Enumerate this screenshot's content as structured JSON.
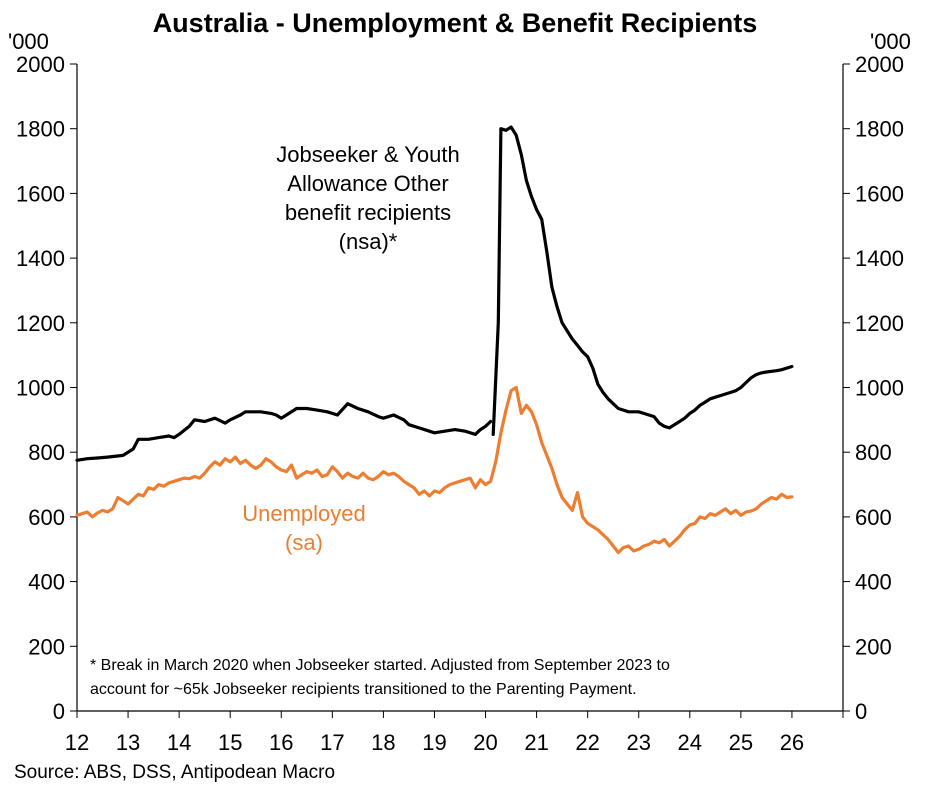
{
  "chart_data": {
    "type": "line",
    "title": "Australia - Unemployment & Benefit Recipients",
    "units_left": "'000",
    "units_right": "'000",
    "ylim": [
      0,
      2000
    ],
    "yticks": [
      0,
      200,
      400,
      600,
      800,
      1000,
      1200,
      1400,
      1600,
      1800,
      2000
    ],
    "xlim": [
      2012,
      2027
    ],
    "xticks": [
      "12",
      "13",
      "14",
      "15",
      "16",
      "17",
      "18",
      "19",
      "20",
      "21",
      "22",
      "23",
      "24",
      "25",
      "26"
    ],
    "series": [
      {
        "name": "Jobseeker & Youth Allowance Other benefit recipients (nsa)*",
        "label_lines": [
          "Jobseeker & Youth",
          "Allowance Other",
          "benefit recipients",
          "(nsa)*"
        ],
        "color": "#000000",
        "segments": [
          [
            [
              2012.0,
              775
            ],
            [
              2012.2,
              780
            ],
            [
              2012.4,
              782
            ],
            [
              2012.6,
              785
            ],
            [
              2012.9,
              790
            ],
            [
              2013.1,
              810
            ],
            [
              2013.2,
              840
            ],
            [
              2013.4,
              840
            ],
            [
              2013.6,
              845
            ],
            [
              2013.8,
              850
            ],
            [
              2013.9,
              845
            ],
            [
              2014.0,
              855
            ],
            [
              2014.2,
              880
            ],
            [
              2014.3,
              900
            ],
            [
              2014.5,
              895
            ],
            [
              2014.7,
              905
            ],
            [
              2014.9,
              890
            ],
            [
              2015.0,
              900
            ],
            [
              2015.2,
              915
            ],
            [
              2015.3,
              925
            ],
            [
              2015.6,
              925
            ],
            [
              2015.8,
              920
            ],
            [
              2015.9,
              915
            ],
            [
              2016.0,
              905
            ],
            [
              2016.1,
              915
            ],
            [
              2016.3,
              935
            ],
            [
              2016.5,
              935
            ],
            [
              2016.7,
              930
            ],
            [
              2016.9,
              925
            ],
            [
              2017.0,
              920
            ],
            [
              2017.1,
              915
            ],
            [
              2017.3,
              950
            ],
            [
              2017.5,
              935
            ],
            [
              2017.7,
              925
            ],
            [
              2017.9,
              910
            ],
            [
              2018.0,
              905
            ],
            [
              2018.2,
              915
            ],
            [
              2018.4,
              900
            ],
            [
              2018.5,
              885
            ],
            [
              2018.7,
              875
            ],
            [
              2018.9,
              865
            ],
            [
              2019.0,
              860
            ],
            [
              2019.2,
              865
            ],
            [
              2019.4,
              870
            ],
            [
              2019.6,
              865
            ],
            [
              2019.8,
              855
            ],
            [
              2019.9,
              870
            ],
            [
              2020.0,
              880
            ],
            [
              2020.1,
              895
            ]
          ],
          [
            [
              2020.15,
              855
            ],
            [
              2020.25,
              1200
            ],
            [
              2020.3,
              1800
            ],
            [
              2020.4,
              1795
            ],
            [
              2020.5,
              1805
            ],
            [
              2020.6,
              1780
            ],
            [
              2020.7,
              1720
            ],
            [
              2020.8,
              1640
            ],
            [
              2020.9,
              1590
            ],
            [
              2021.0,
              1550
            ],
            [
              2021.1,
              1520
            ],
            [
              2021.2,
              1420
            ],
            [
              2021.3,
              1310
            ],
            [
              2021.4,
              1250
            ],
            [
              2021.5,
              1200
            ],
            [
              2021.6,
              1175
            ],
            [
              2021.7,
              1150
            ],
            [
              2021.8,
              1130
            ],
            [
              2021.9,
              1110
            ],
            [
              2022.0,
              1095
            ],
            [
              2022.1,
              1060
            ],
            [
              2022.2,
              1010
            ],
            [
              2022.3,
              985
            ],
            [
              2022.4,
              965
            ],
            [
              2022.5,
              950
            ],
            [
              2022.6,
              935
            ],
            [
              2022.7,
              930
            ],
            [
              2022.8,
              925
            ],
            [
              2022.9,
              925
            ],
            [
              2023.0,
              925
            ],
            [
              2023.1,
              920
            ],
            [
              2023.2,
              915
            ],
            [
              2023.3,
              910
            ],
            [
              2023.4,
              890
            ],
            [
              2023.5,
              880
            ],
            [
              2023.6,
              875
            ],
            [
              2023.7,
              885
            ],
            [
              2023.8,
              895
            ],
            [
              2023.9,
              905
            ],
            [
              2024.0,
              920
            ],
            [
              2024.1,
              930
            ],
            [
              2024.2,
              945
            ],
            [
              2024.3,
              955
            ],
            [
              2024.4,
              965
            ],
            [
              2024.5,
              970
            ],
            [
              2024.6,
              975
            ],
            [
              2024.7,
              980
            ],
            [
              2024.8,
              985
            ],
            [
              2024.9,
              990
            ],
            [
              2025.0,
              1000
            ],
            [
              2025.1,
              1015
            ],
            [
              2025.2,
              1030
            ],
            [
              2025.3,
              1040
            ],
            [
              2025.4,
              1045
            ],
            [
              2025.5,
              1048
            ],
            [
              2025.6,
              1050
            ],
            [
              2025.7,
              1052
            ],
            [
              2025.8,
              1055
            ],
            [
              2025.9,
              1060
            ],
            [
              2026.0,
              1065
            ]
          ]
        ]
      },
      {
        "name": "Unemployed (sa)",
        "label_lines": [
          "Unemployed",
          "(sa)"
        ],
        "color": "#ED7D31",
        "segments": [
          [
            [
              2012.0,
              605
            ],
            [
              2012.1,
              610
            ],
            [
              2012.2,
              615
            ],
            [
              2012.3,
              600
            ],
            [
              2012.4,
              612
            ],
            [
              2012.5,
              620
            ],
            [
              2012.6,
              615
            ],
            [
              2012.7,
              625
            ],
            [
              2012.8,
              660
            ],
            [
              2012.9,
              650
            ],
            [
              2013.0,
              640
            ],
            [
              2013.1,
              655
            ],
            [
              2013.2,
              670
            ],
            [
              2013.3,
              665
            ],
            [
              2013.4,
              690
            ],
            [
              2013.5,
              685
            ],
            [
              2013.6,
              700
            ],
            [
              2013.7,
              695
            ],
            [
              2013.8,
              705
            ],
            [
              2013.9,
              710
            ],
            [
              2014.0,
              715
            ],
            [
              2014.1,
              720
            ],
            [
              2014.2,
              718
            ],
            [
              2014.3,
              725
            ],
            [
              2014.4,
              720
            ],
            [
              2014.5,
              735
            ],
            [
              2014.6,
              755
            ],
            [
              2014.7,
              770
            ],
            [
              2014.8,
              760
            ],
            [
              2014.9,
              780
            ],
            [
              2015.0,
              770
            ],
            [
              2015.1,
              785
            ],
            [
              2015.2,
              765
            ],
            [
              2015.3,
              775
            ],
            [
              2015.4,
              760
            ],
            [
              2015.5,
              750
            ],
            [
              2015.6,
              760
            ],
            [
              2015.7,
              780
            ],
            [
              2015.8,
              770
            ],
            [
              2015.9,
              755
            ],
            [
              2016.0,
              745
            ],
            [
              2016.1,
              740
            ],
            [
              2016.2,
              760
            ],
            [
              2016.3,
              720
            ],
            [
              2016.4,
              730
            ],
            [
              2016.5,
              740
            ],
            [
              2016.6,
              735
            ],
            [
              2016.7,
              745
            ],
            [
              2016.8,
              725
            ],
            [
              2016.9,
              730
            ],
            [
              2017.0,
              755
            ],
            [
              2017.1,
              740
            ],
            [
              2017.2,
              720
            ],
            [
              2017.3,
              735
            ],
            [
              2017.4,
              725
            ],
            [
              2017.5,
              720
            ],
            [
              2017.6,
              735
            ],
            [
              2017.7,
              720
            ],
            [
              2017.8,
              715
            ],
            [
              2017.9,
              725
            ],
            [
              2018.0,
              740
            ],
            [
              2018.1,
              730
            ],
            [
              2018.2,
              735
            ],
            [
              2018.3,
              725
            ],
            [
              2018.4,
              710
            ],
            [
              2018.5,
              700
            ],
            [
              2018.6,
              690
            ],
            [
              2018.7,
              670
            ],
            [
              2018.8,
              680
            ],
            [
              2018.9,
              665
            ],
            [
              2019.0,
              680
            ],
            [
              2019.1,
              675
            ],
            [
              2019.2,
              690
            ],
            [
              2019.3,
              700
            ],
            [
              2019.4,
              705
            ],
            [
              2019.5,
              710
            ],
            [
              2019.6,
              715
            ],
            [
              2019.7,
              720
            ],
            [
              2019.8,
              690
            ],
            [
              2019.9,
              715
            ],
            [
              2020.0,
              700
            ],
            [
              2020.1,
              710
            ],
            [
              2020.2,
              770
            ],
            [
              2020.3,
              860
            ],
            [
              2020.4,
              930
            ],
            [
              2020.5,
              990
            ],
            [
              2020.6,
              1000
            ],
            [
              2020.7,
              920
            ],
            [
              2020.8,
              945
            ],
            [
              2020.9,
              925
            ],
            [
              2021.0,
              885
            ],
            [
              2021.1,
              830
            ],
            [
              2021.2,
              790
            ],
            [
              2021.3,
              750
            ],
            [
              2021.4,
              700
            ],
            [
              2021.5,
              660
            ],
            [
              2021.6,
              640
            ],
            [
              2021.7,
              620
            ],
            [
              2021.8,
              675
            ],
            [
              2021.9,
              600
            ],
            [
              2022.0,
              580
            ],
            [
              2022.1,
              570
            ],
            [
              2022.2,
              560
            ],
            [
              2022.3,
              545
            ],
            [
              2022.4,
              530
            ],
            [
              2022.5,
              510
            ],
            [
              2022.6,
              490
            ],
            [
              2022.7,
              505
            ],
            [
              2022.8,
              510
            ],
            [
              2022.9,
              495
            ],
            [
              2023.0,
              500
            ],
            [
              2023.1,
              510
            ],
            [
              2023.2,
              515
            ],
            [
              2023.3,
              525
            ],
            [
              2023.4,
              520
            ],
            [
              2023.5,
              530
            ],
            [
              2023.6,
              510
            ],
            [
              2023.7,
              525
            ],
            [
              2023.8,
              540
            ],
            [
              2023.9,
              560
            ],
            [
              2024.0,
              575
            ],
            [
              2024.1,
              580
            ],
            [
              2024.2,
              600
            ],
            [
              2024.3,
              595
            ],
            [
              2024.4,
              610
            ],
            [
              2024.5,
              605
            ],
            [
              2024.6,
              615
            ],
            [
              2024.7,
              625
            ],
            [
              2024.8,
              610
            ],
            [
              2024.9,
              620
            ],
            [
              2025.0,
              605
            ],
            [
              2025.1,
              615
            ],
            [
              2025.2,
              618
            ],
            [
              2025.3,
              625
            ],
            [
              2025.4,
              640
            ],
            [
              2025.5,
              650
            ],
            [
              2025.6,
              660
            ],
            [
              2025.7,
              655
            ],
            [
              2025.8,
              670
            ],
            [
              2025.9,
              660
            ],
            [
              2026.0,
              662
            ]
          ]
        ]
      }
    ],
    "footnote_lines": [
      "* Break in March 2020 when Jobseeker started. Adjusted from September 2023 to",
      "account for ~65k Jobseeker recipients transitioned to the Parenting Payment."
    ],
    "source": "Source: ABS, DSS, Antipodean Macro"
  }
}
